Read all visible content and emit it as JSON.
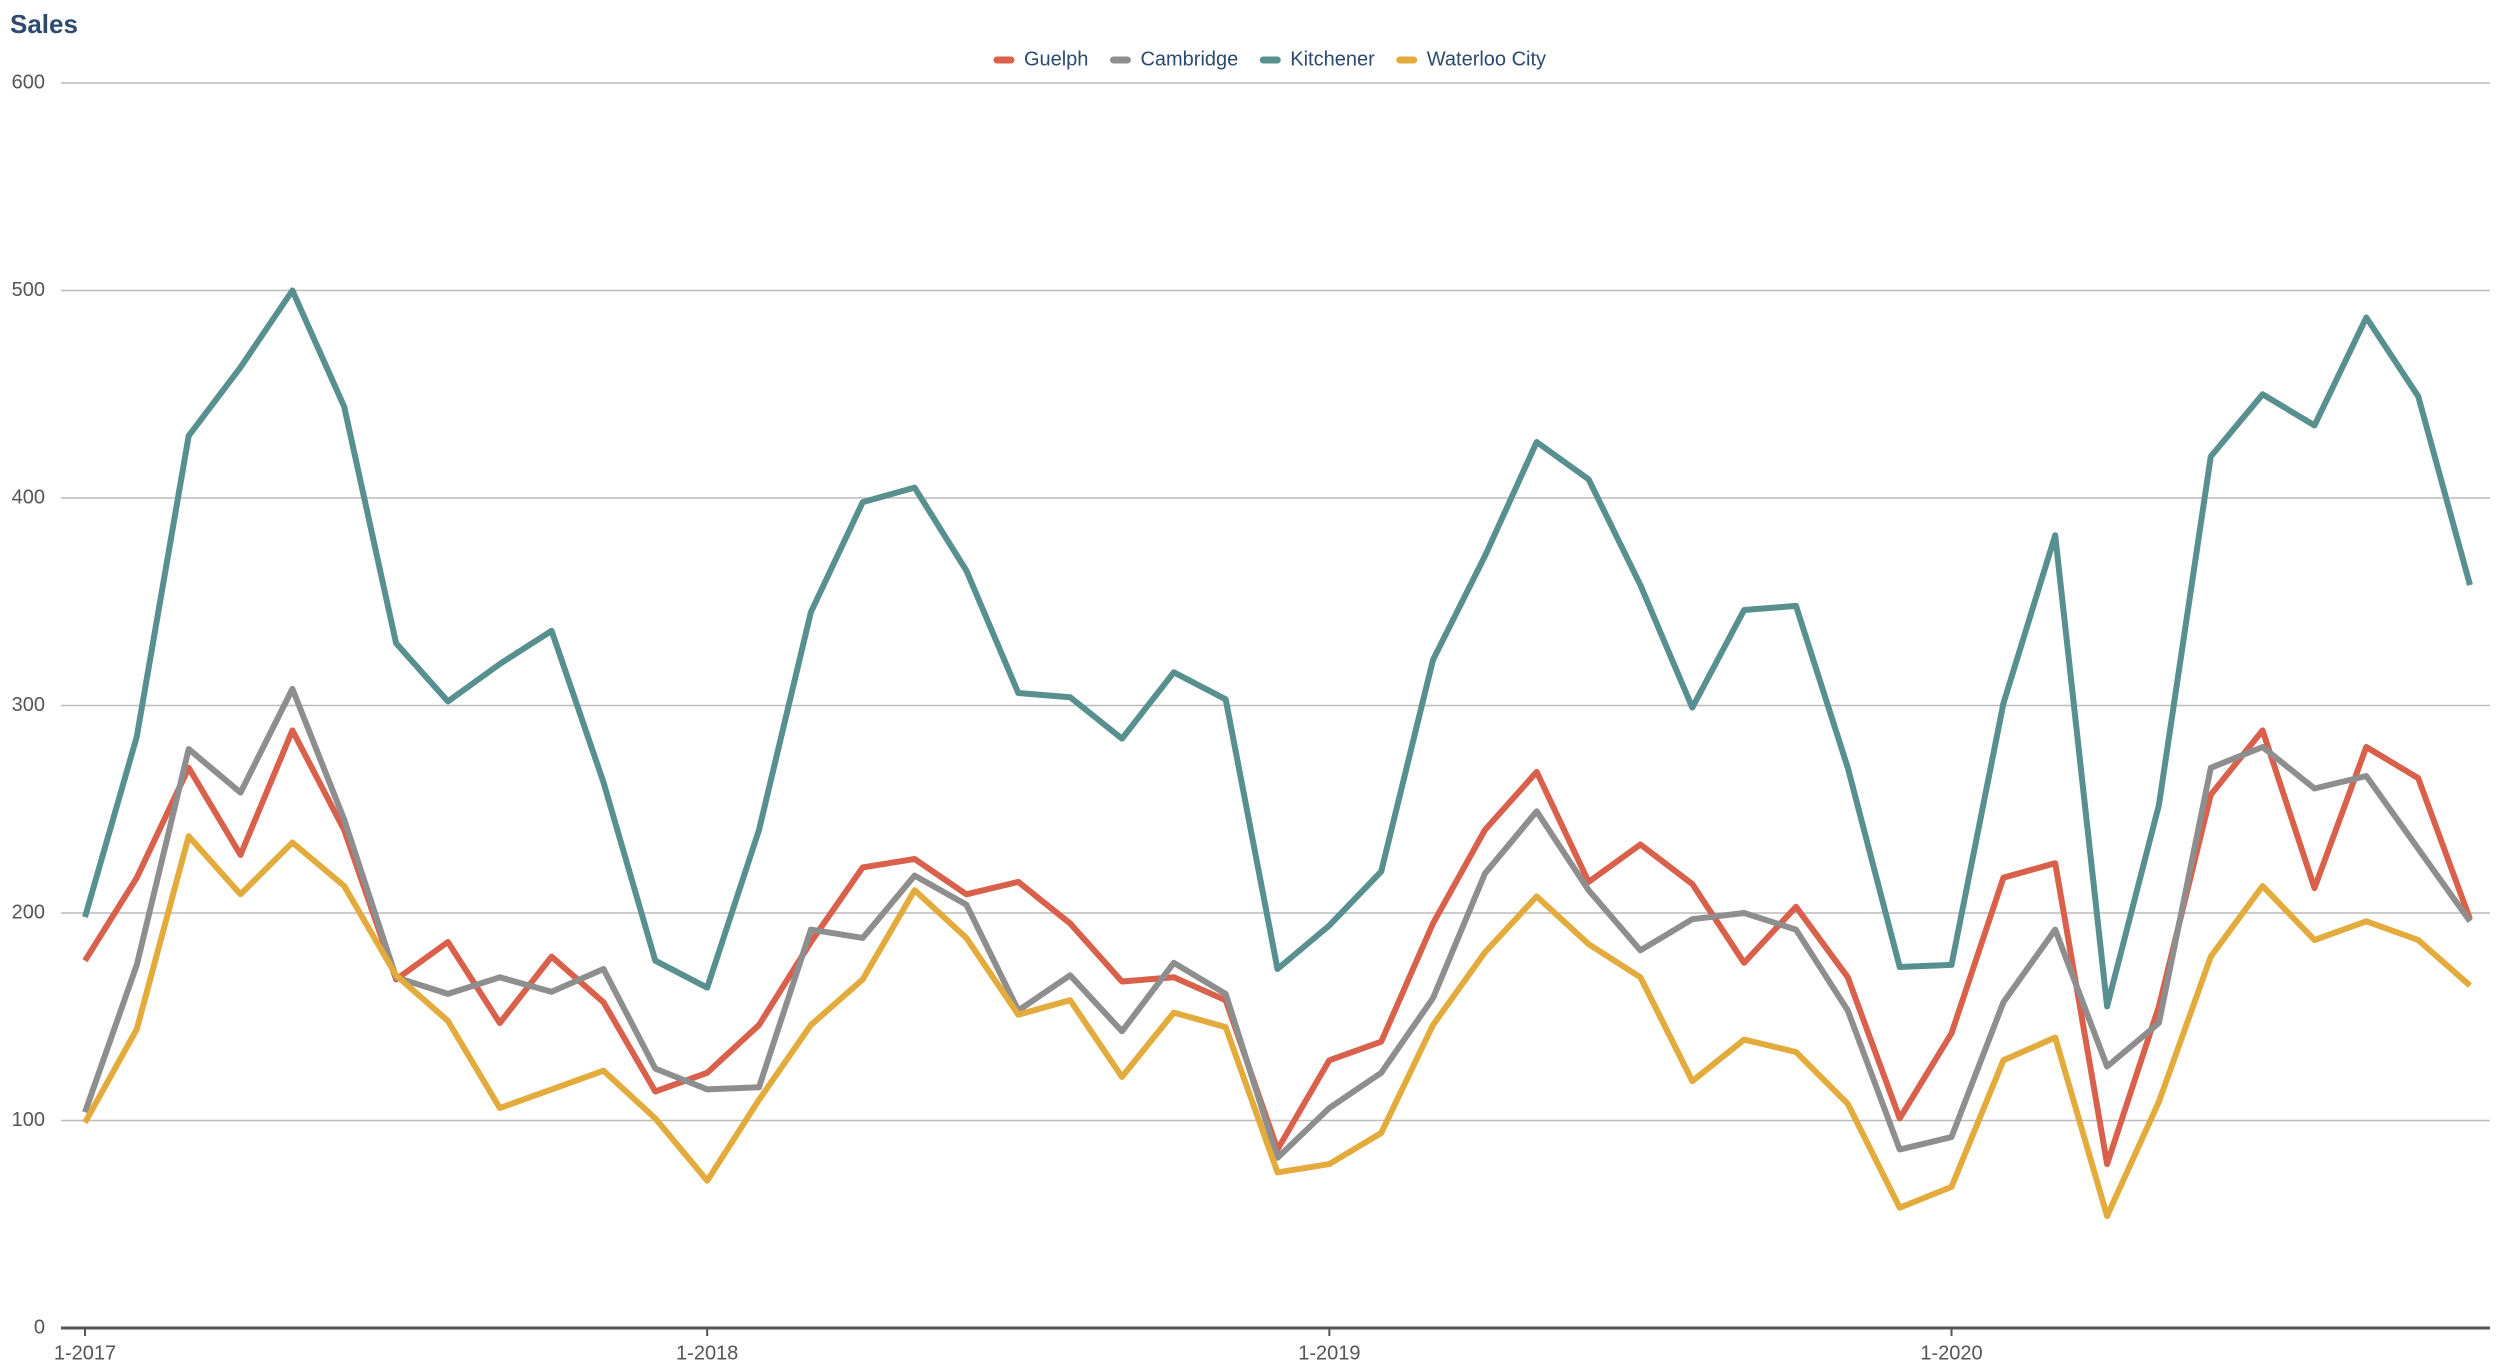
{
  "chart_data": {
    "type": "line",
    "title": "Sales",
    "categories": [
      "1-2017",
      null,
      null,
      null,
      null,
      null,
      null,
      null,
      null,
      null,
      null,
      null,
      "1-2018",
      null,
      null,
      null,
      null,
      null,
      null,
      null,
      null,
      null,
      null,
      null,
      "1-2019",
      null,
      null,
      null,
      null,
      null,
      null,
      null,
      null,
      null,
      null,
      null,
      "1-2020",
      null,
      null,
      null,
      null,
      null,
      null,
      null,
      null,
      null,
      null
    ],
    "series": [
      {
        "name": "Guelph",
        "color": "#d9604a",
        "values": [
          177,
          217,
          270,
          228,
          288,
          240,
          168,
          186,
          147,
          179,
          157,
          114,
          123,
          146,
          186,
          222,
          226,
          209,
          215,
          195,
          167,
          169,
          158,
          86,
          129,
          138,
          195,
          240,
          268,
          215,
          233,
          214,
          176,
          203,
          169,
          101,
          142,
          217,
          224,
          79,
          155,
          257,
          288,
          212,
          280,
          265,
          197
        ]
      },
      {
        "name": "Cambridge",
        "color": "#8e8e8e",
        "values": [
          104,
          175,
          279,
          258,
          308,
          245,
          169,
          161,
          169,
          162,
          173,
          125,
          115,
          116,
          192,
          188,
          218,
          204,
          153,
          170,
          143,
          176,
          161,
          82,
          106,
          123,
          159,
          219,
          249,
          211,
          182,
          197,
          200,
          192,
          153,
          86,
          92,
          157,
          192,
          126,
          147,
          270,
          280,
          260,
          266,
          231,
          196
        ]
      },
      {
        "name": "Kitchener",
        "color": "#57908f",
        "values": [
          198,
          285,
          430,
          463,
          500,
          444,
          330,
          302,
          320,
          336,
          263,
          177,
          164,
          240,
          345,
          398,
          405,
          365,
          306,
          304,
          284,
          316,
          303,
          173,
          194,
          220,
          322,
          372,
          427,
          409,
          358,
          299,
          346,
          348,
          270,
          174,
          175,
          301,
          382,
          155,
          252,
          420,
          450,
          435,
          487,
          449,
          358
        ]
      },
      {
        "name": "Waterloo City",
        "color": "#e3ab3c",
        "values": [
          99,
          144,
          237,
          209,
          234,
          213,
          170,
          148,
          106,
          115,
          124,
          101,
          71,
          110,
          146,
          168,
          211,
          188,
          151,
          158,
          121,
          152,
          145,
          75,
          79,
          94,
          146,
          181,
          208,
          185,
          169,
          119,
          139,
          133,
          108,
          58,
          68,
          129,
          140,
          54,
          109,
          179,
          213,
          187,
          196,
          187,
          165
        ]
      }
    ],
    "ylim": [
      0,
      600
    ],
    "yticks": [
      0,
      100,
      200,
      300,
      400,
      500,
      600
    ],
    "grid": true,
    "legend": "top"
  }
}
